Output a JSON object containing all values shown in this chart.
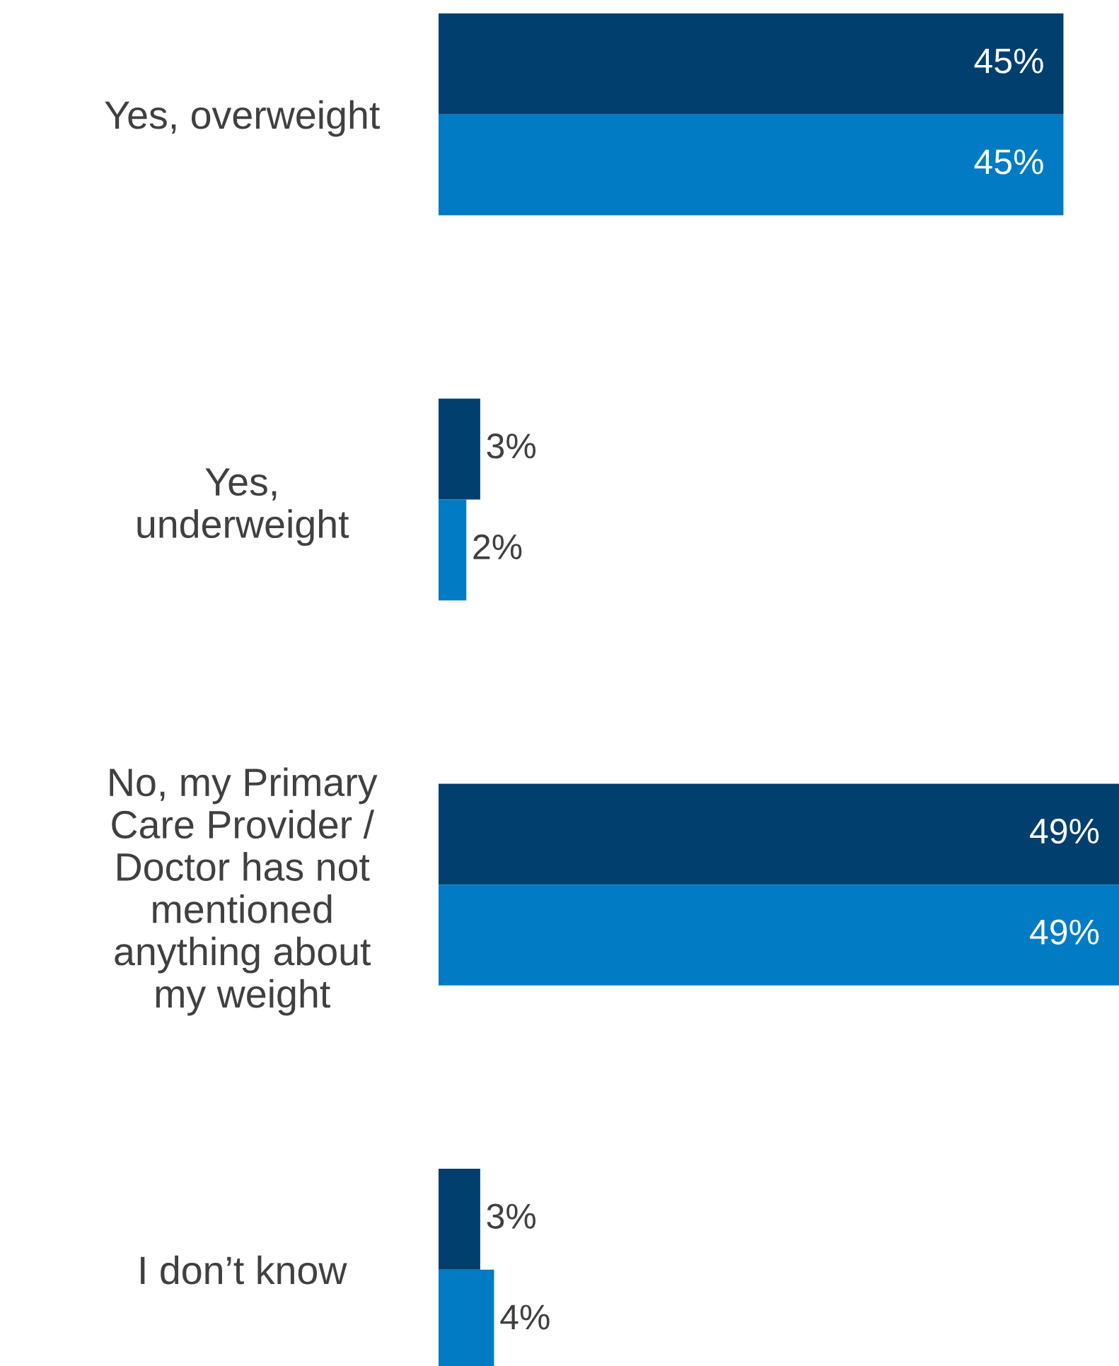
{
  "chart_data": {
    "type": "bar",
    "orientation": "horizontal",
    "categories": [
      "Yes, overweight",
      "Yes,\nunderweight",
      "No, my Primary\nCare Provider /\nDoctor has not\nmentioned\nanything about\nmy weight",
      "I don’t know"
    ],
    "series": [
      {
        "color": "#003f6e",
        "values": [
          45,
          3,
          49,
          3
        ],
        "value_labels": [
          "45%",
          "3%",
          "49%",
          "3%"
        ]
      },
      {
        "color": "#007bc4",
        "values": [
          45,
          2,
          49,
          4
        ],
        "value_labels": [
          "45%",
          "2%",
          "49%",
          "4%"
        ]
      }
    ],
    "grid": false,
    "legend": false
  }
}
